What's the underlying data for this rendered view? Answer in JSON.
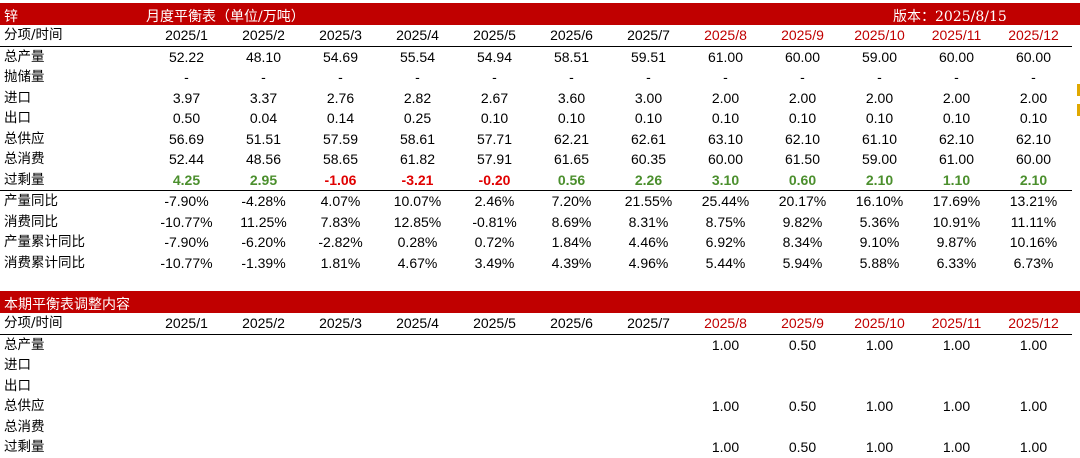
{
  "top_bar": {
    "commodity": "锌",
    "title": "月度平衡表（单位/万吨）",
    "version": "版本：2025/8/15"
  },
  "bottom_bar": {
    "title": "本期平衡表调整内容"
  },
  "months": [
    "2025/1",
    "2025/2",
    "2025/3",
    "2025/4",
    "2025/5",
    "2025/6",
    "2025/7",
    "2025/8",
    "2025/9",
    "2025/10",
    "2025/11",
    "2025/12"
  ],
  "forecast_months_color": "#c00000",
  "header_label": "分项/时间",
  "balance_rows": [
    {
      "label": "总产量",
      "values": [
        "52.22",
        "48.10",
        "54.69",
        "55.54",
        "54.94",
        "58.51",
        "59.51",
        "61.00",
        "60.00",
        "59.00",
        "60.00",
        "60.00"
      ]
    },
    {
      "label": "抛储量",
      "values": [
        "-",
        "-",
        "-",
        "-",
        "-",
        "-",
        "-",
        "-",
        "-",
        "-",
        "-",
        "-"
      ]
    },
    {
      "label": "进口",
      "values": [
        "3.97",
        "3.37",
        "2.76",
        "2.82",
        "2.67",
        "3.60",
        "3.00",
        "2.00",
        "2.00",
        "2.00",
        "2.00",
        "2.00"
      ]
    },
    {
      "label": "出口",
      "values": [
        "0.50",
        "0.04",
        "0.14",
        "0.25",
        "0.10",
        "0.10",
        "0.10",
        "0.10",
        "0.10",
        "0.10",
        "0.10",
        "0.10"
      ]
    },
    {
      "label": "总供应",
      "values": [
        "56.69",
        "51.51",
        "57.59",
        "58.61",
        "57.71",
        "62.21",
        "62.61",
        "63.10",
        "62.10",
        "61.10",
        "62.10",
        "62.10"
      ]
    },
    {
      "label": "总消费",
      "values": [
        "52.44",
        "48.56",
        "58.65",
        "61.82",
        "57.91",
        "61.65",
        "60.35",
        "60.00",
        "61.50",
        "59.00",
        "61.00",
        "60.00"
      ]
    },
    {
      "label": "过剩量",
      "values": [
        "4.25",
        "2.95",
        "-1.06",
        "-3.21",
        "-0.20",
        "0.56",
        "2.26",
        "3.10",
        "0.60",
        "2.10",
        "1.10",
        "2.10"
      ]
    },
    {
      "label": "产量同比",
      "values": [
        "-7.90%",
        "-4.28%",
        "4.07%",
        "10.07%",
        "2.46%",
        "7.20%",
        "21.55%",
        "25.44%",
        "20.17%",
        "16.10%",
        "17.69%",
        "13.21%"
      ]
    },
    {
      "label": "消费同比",
      "values": [
        "-10.77%",
        "11.25%",
        "7.83%",
        "12.85%",
        "-0.81%",
        "8.69%",
        "8.31%",
        "8.75%",
        "9.82%",
        "5.36%",
        "10.91%",
        "11.11%"
      ]
    },
    {
      "label": "产量累计同比",
      "values": [
        "-7.90%",
        "-6.20%",
        "-2.82%",
        "0.28%",
        "0.72%",
        "1.84%",
        "4.46%",
        "6.92%",
        "8.34%",
        "9.10%",
        "9.87%",
        "10.16%"
      ]
    },
    {
      "label": "消费累计同比",
      "values": [
        "-10.77%",
        "-1.39%",
        "1.81%",
        "4.67%",
        "3.49%",
        "4.39%",
        "4.96%",
        "5.44%",
        "5.94%",
        "5.88%",
        "6.33%",
        "6.73%"
      ]
    }
  ],
  "adjust_rows": [
    {
      "label": "总产量",
      "values": [
        "",
        "",
        "",
        "",
        "",
        "",
        "",
        "1.00",
        "0.50",
        "1.00",
        "1.00",
        "1.00"
      ]
    },
    {
      "label": "进口",
      "values": [
        "",
        "",
        "",
        "",
        "",
        "",
        "",
        "",
        "",
        "",
        "",
        ""
      ]
    },
    {
      "label": "出口",
      "values": [
        "",
        "",
        "",
        "",
        "",
        "",
        "",
        "",
        "",
        "",
        "",
        ""
      ]
    },
    {
      "label": "总供应",
      "values": [
        "",
        "",
        "",
        "",
        "",
        "",
        "",
        "1.00",
        "0.50",
        "1.00",
        "1.00",
        "1.00"
      ]
    },
    {
      "label": "总消费",
      "values": [
        "",
        "",
        "",
        "",
        "",
        "",
        "",
        "",
        "",
        "",
        "",
        ""
      ]
    },
    {
      "label": "过剩量",
      "values": [
        "",
        "",
        "",
        "",
        "",
        "",
        "",
        "1.00",
        "0.50",
        "1.00",
        "1.00",
        "1.00"
      ]
    }
  ],
  "surplus_colors": {
    "positive": "#4b8f2d",
    "negative": "#e00000"
  },
  "accent": "#c00000"
}
